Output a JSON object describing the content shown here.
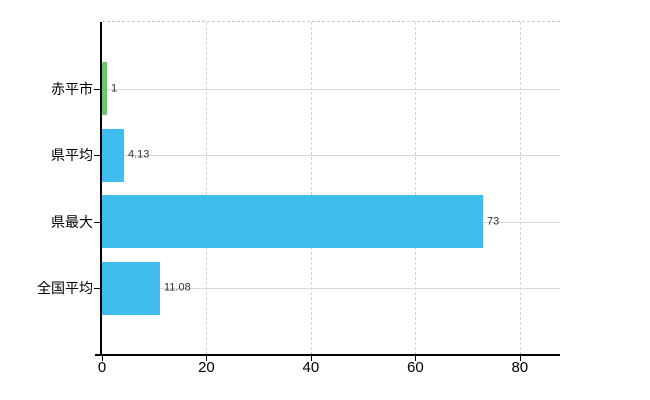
{
  "chart_data": {
    "type": "bar",
    "orientation": "horizontal",
    "title": "",
    "xlabel": "",
    "ylabel": "",
    "categories": [
      "赤平市",
      "県平均",
      "県最大",
      "全国平均"
    ],
    "values": [
      1,
      4.13,
      73,
      11.08
    ],
    "value_labels": [
      "1",
      "4.13",
      "73",
      "11.08"
    ],
    "bar_colors": [
      "#6fc372",
      "#3fbdef",
      "#3fbdef",
      "#3fbdef"
    ],
    "x_ticks": [
      0,
      20,
      40,
      60,
      80
    ],
    "x_tick_labels": [
      "0",
      "20",
      "40",
      "60",
      "80"
    ],
    "xlim": [
      0,
      87.7
    ],
    "grid": {
      "vertical_dashed_at_ticks": true,
      "horizontal_solid_at_categories": true,
      "top_dashed_frame_line": true
    },
    "legend": "none"
  },
  "colors": {
    "background": "#ffffff",
    "bar_blue": "#3fbdef",
    "bar_green": "#6fc372",
    "grid_solid": "#d5dcd5",
    "grid_dashed": "#d2d2d2",
    "axis": "#000000",
    "tick_label": "#000000",
    "value_label": "#333333"
  }
}
